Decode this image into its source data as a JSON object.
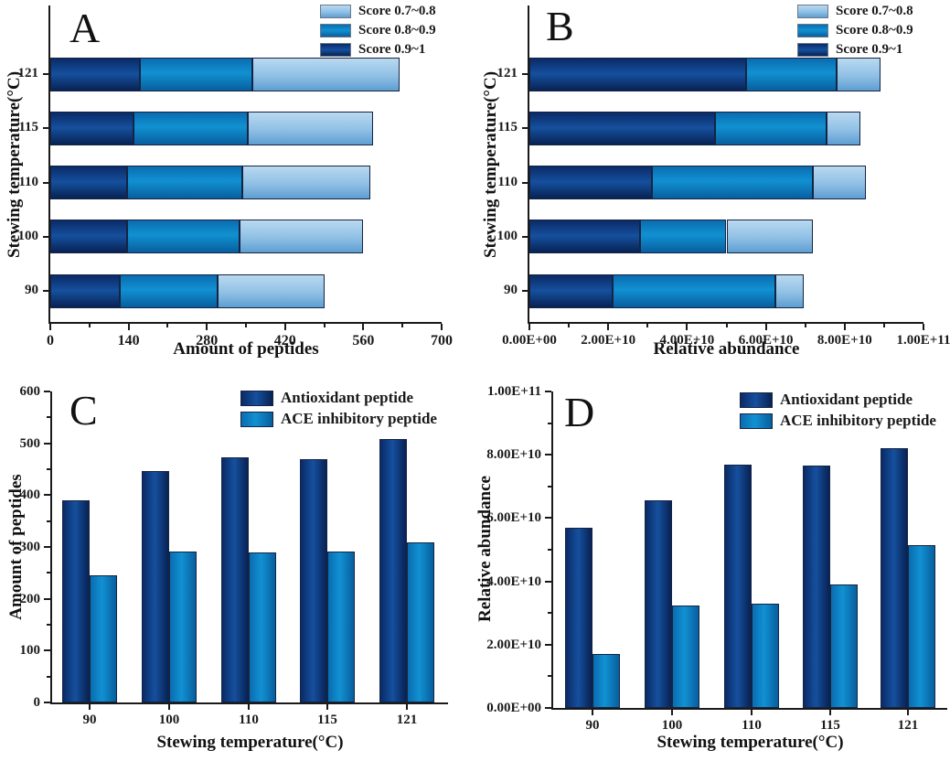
{
  "chart_data": [
    {
      "letter": "A",
      "type": "bar",
      "subtype": "stacked-horizontal",
      "xlabel": "Amount of peptides",
      "ylabel": "Stewing temperature(°C)",
      "categories": [
        "90",
        "100",
        "110",
        "115",
        "121"
      ],
      "xlim": [
        0,
        700
      ],
      "xtick_labels": [
        "0",
        "140",
        "280",
        "420",
        "560",
        "700"
      ],
      "grid": "off",
      "legend_position": "top-right",
      "series": [
        {
          "name": "Score 0.9~1",
          "tone": "dark-navy",
          "color": "#12418f",
          "values": [
            125,
            138,
            138,
            149,
            160
          ]
        },
        {
          "name": "Score 0.8~0.9",
          "tone": "medium-blue",
          "color": "#0e85c7",
          "values": [
            175,
            200,
            205,
            205,
            202
          ]
        },
        {
          "name": "Score 0.7~0.8",
          "tone": "light-blue",
          "color": "#9cc7e8",
          "values": [
            190,
            222,
            230,
            224,
            263
          ]
        }
      ],
      "stack_totals": [
        490,
        560,
        573,
        578,
        625
      ]
    },
    {
      "letter": "B",
      "type": "bar",
      "subtype": "stacked-horizontal",
      "xlabel": "Relative abundance",
      "ylabel": "Stewing temperature(°C)",
      "categories": [
        "90",
        "100",
        "110",
        "115",
        "121"
      ],
      "xlim": [
        0,
        100000000000.0
      ],
      "xtick_labels": [
        "0.00E+00",
        "2.00E+10",
        "4.00E+10",
        "6.00E+10",
        "8.00E+10",
        "1.00E+11"
      ],
      "grid": "off",
      "legend_position": "top-right",
      "series": [
        {
          "name": "Score 0.9~1",
          "tone": "dark-navy",
          "color": "#12418f",
          "values": [
            21000000000.0,
            28000000000.0,
            31000000000.0,
            47000000000.0,
            55000000000.0
          ]
        },
        {
          "name": "Score 0.8~0.9",
          "tone": "medium-blue",
          "color": "#0e85c7",
          "values": [
            41500000000.0,
            22000000000.0,
            41000000000.0,
            28500000000.0,
            23000000000.0
          ]
        },
        {
          "name": "Score 0.7~0.8",
          "tone": "light-blue",
          "color": "#9cc7e8",
          "values": [
            7000000000.0,
            22000000000.0,
            13500000000.0,
            8500000000.0,
            11000000000.0
          ]
        }
      ],
      "stack_totals": [
        69500000000.0,
        72000000000.0,
        85500000000.0,
        84000000000.0,
        89000000000.0
      ]
    },
    {
      "letter": "C",
      "type": "bar",
      "subtype": "grouped-vertical",
      "xlabel": "Stewing temperature(°C)",
      "ylabel": "Amount of peptides",
      "categories": [
        "90",
        "100",
        "110",
        "115",
        "121"
      ],
      "ylim": [
        0,
        600
      ],
      "ytick_labels": [
        "0",
        "100",
        "200",
        "300",
        "400",
        "500",
        "600"
      ],
      "grid": "off",
      "legend_position": "top-right",
      "series": [
        {
          "name": "Antioxidant peptide",
          "tone": "dark-navy",
          "color": "#12418f",
          "values": [
            390,
            447,
            473,
            470,
            509
          ]
        },
        {
          "name": "ACE inhibitory peptide",
          "tone": "medium-blue",
          "color": "#0e85c7",
          "values": [
            245,
            291,
            289,
            291,
            309
          ]
        }
      ]
    },
    {
      "letter": "D",
      "type": "bar",
      "subtype": "grouped-vertical",
      "xlabel": "Stewing temperature(°C)",
      "ylabel": "Relative abundance",
      "categories": [
        "90",
        "100",
        "110",
        "115",
        "121"
      ],
      "ylim": [
        0,
        100000000000.0
      ],
      "ytick_labels": [
        "0.00E+00",
        "2.00E+10",
        "4.00E+10",
        "6.00E+10",
        "8.00E+10",
        "1.00E+11"
      ],
      "grid": "off",
      "legend_position": "top-right",
      "series": [
        {
          "name": "Antioxidant peptide",
          "tone": "dark-navy",
          "color": "#12418f",
          "values": [
            57000000000.0,
            65500000000.0,
            77000000000.0,
            76500000000.0,
            82000000000.0
          ]
        },
        {
          "name": "ACE inhibitory peptide",
          "tone": "medium-blue",
          "color": "#0e85c7",
          "values": [
            17000000000.0,
            32500000000.0,
            33000000000.0,
            39000000000.0,
            51500000000.0
          ]
        }
      ]
    }
  ]
}
